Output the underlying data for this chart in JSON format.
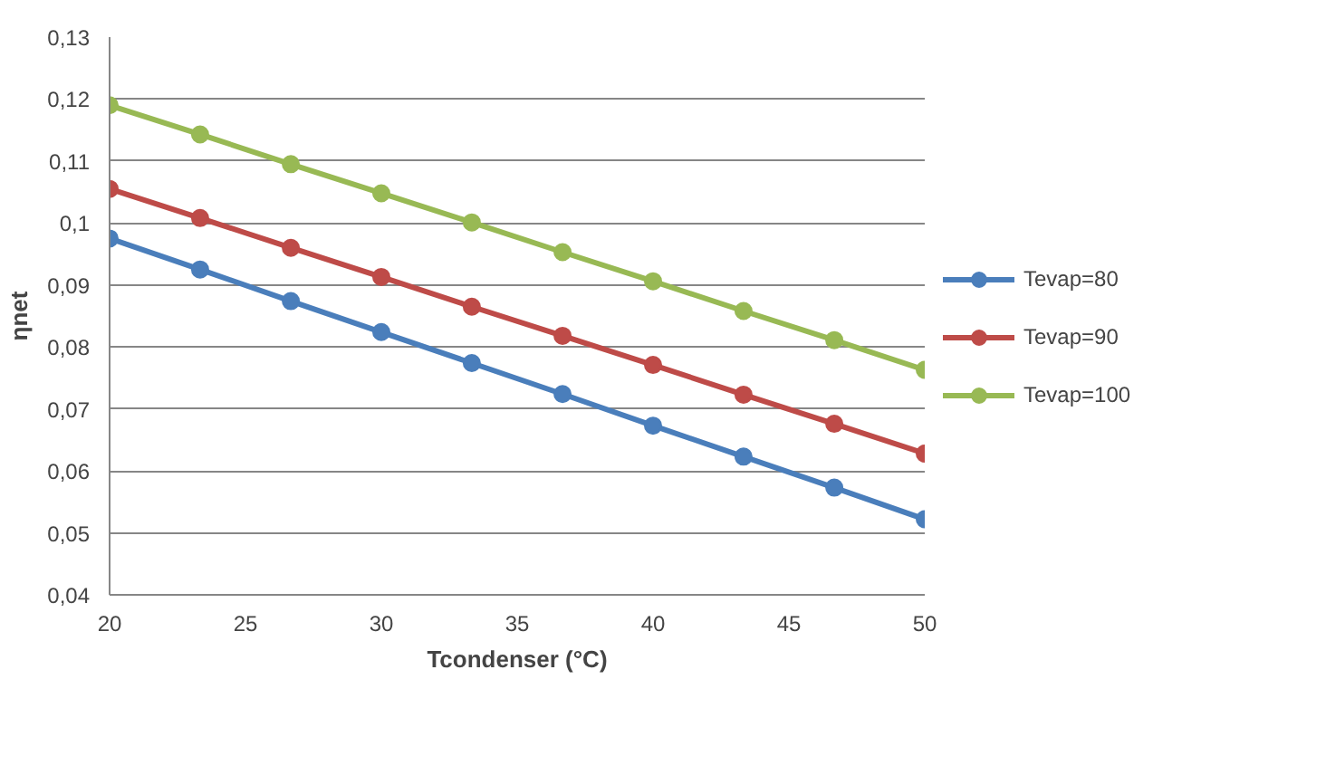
{
  "chart_data": {
    "type": "line",
    "xlabel": "Tcondenser (°C)",
    "ylabel": "ηnet",
    "x": [
      20,
      23.33,
      26.67,
      30,
      33.33,
      36.67,
      40,
      43.33,
      46.67,
      50
    ],
    "series": [
      {
        "name": "Tevap=80",
        "color": "#4a7ebb",
        "values": [
          0.0975,
          0.0925,
          0.0874,
          0.0824,
          0.0774,
          0.0724,
          0.0673,
          0.0623,
          0.0573,
          0.0522
        ]
      },
      {
        "name": "Tevap=90",
        "color": "#be4b48",
        "values": [
          0.1055,
          0.1008,
          0.096,
          0.0913,
          0.0865,
          0.0818,
          0.0771,
          0.0723,
          0.0676,
          0.0628
        ]
      },
      {
        "name": "Tevap=100",
        "color": "#98b954",
        "values": [
          0.119,
          0.1143,
          0.1095,
          0.1048,
          0.1001,
          0.0953,
          0.0906,
          0.0858,
          0.0811,
          0.0763
        ]
      }
    ],
    "xlim": [
      20,
      50
    ],
    "xticks": [
      20,
      25,
      30,
      35,
      40,
      45,
      50
    ],
    "ylim": [
      0.04,
      0.13
    ],
    "yticks": [
      {
        "value": 0.04,
        "label": "0,04"
      },
      {
        "value": 0.05,
        "label": "0,05"
      },
      {
        "value": 0.06,
        "label": "0,06"
      },
      {
        "value": 0.07,
        "label": "0,07"
      },
      {
        "value": 0.08,
        "label": "0,08"
      },
      {
        "value": 0.09,
        "label": "0,09"
      },
      {
        "value": 0.1,
        "label": "0,1"
      },
      {
        "value": 0.11,
        "label": "0,11"
      },
      {
        "value": 0.12,
        "label": "0,12"
      },
      {
        "value": 0.13,
        "label": "0,13"
      }
    ],
    "grid": "y",
    "legend": "right",
    "marker": "circle",
    "line_style": "solid"
  }
}
